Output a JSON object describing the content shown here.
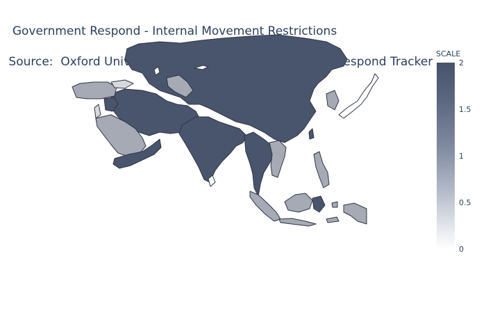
{
  "title": {
    "line1": "Government Respond - Internal Movement Restrictions",
    "line2": " Source:  Oxford University CORONAVIRUS Government Respond Tracker"
  },
  "colorbar": {
    "title": "SCALE",
    "ticks": [
      "2",
      "1.5",
      "1",
      "0.5",
      "0"
    ],
    "colors": {
      "high": "#47536b",
      "mid": "#a8adb8",
      "low": "#ffffff"
    }
  },
  "map": {
    "region": "Asia",
    "scale_min": 0,
    "scale_max": 2,
    "fill_colors": {
      "2": "#49556d",
      "1": "#a5aab5",
      "0": "#ffffff",
      "0.5": "#d6d9df"
    }
  }
}
